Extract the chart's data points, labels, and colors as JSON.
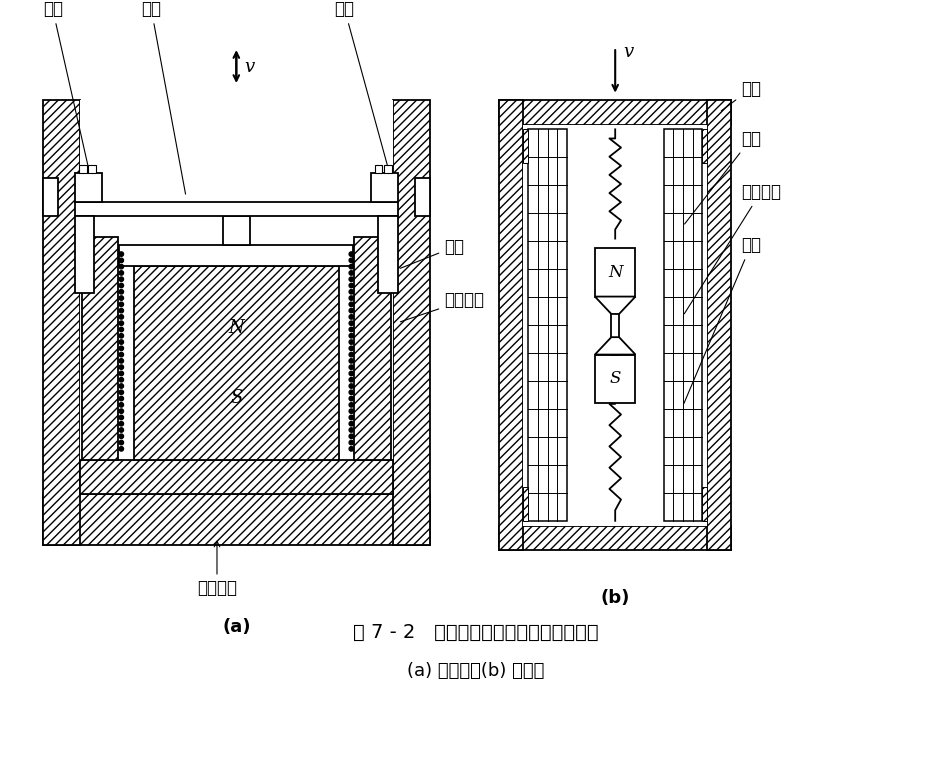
{
  "title_main": "图 7 - 2   恒磁通式磁电传感器结构原理图",
  "title_sub": "(a) 动圈式；(b) 动铁式",
  "label_a_spring": "弹簧",
  "label_a_pole": "极掌",
  "label_a_coil": "线圈",
  "label_a_magcore": "磁轭",
  "label_a_compcoil": "补偿线圈",
  "label_a_perm": "永久磁铁",
  "label_a_v": "v",
  "label_a": "(a)",
  "label_b_shell": "壳体",
  "label_b_coil": "线圈",
  "label_b_perm": "永久磁铁",
  "label_b_spring": "弹簧",
  "label_b_v": "v",
  "label_b": "(b)",
  "bg_color": "#ffffff",
  "line_color": "#000000",
  "font_size_label": 12,
  "font_size_ns": 11,
  "font_size_title": 14,
  "font_size_sub": 13,
  "font_size_v": 13
}
